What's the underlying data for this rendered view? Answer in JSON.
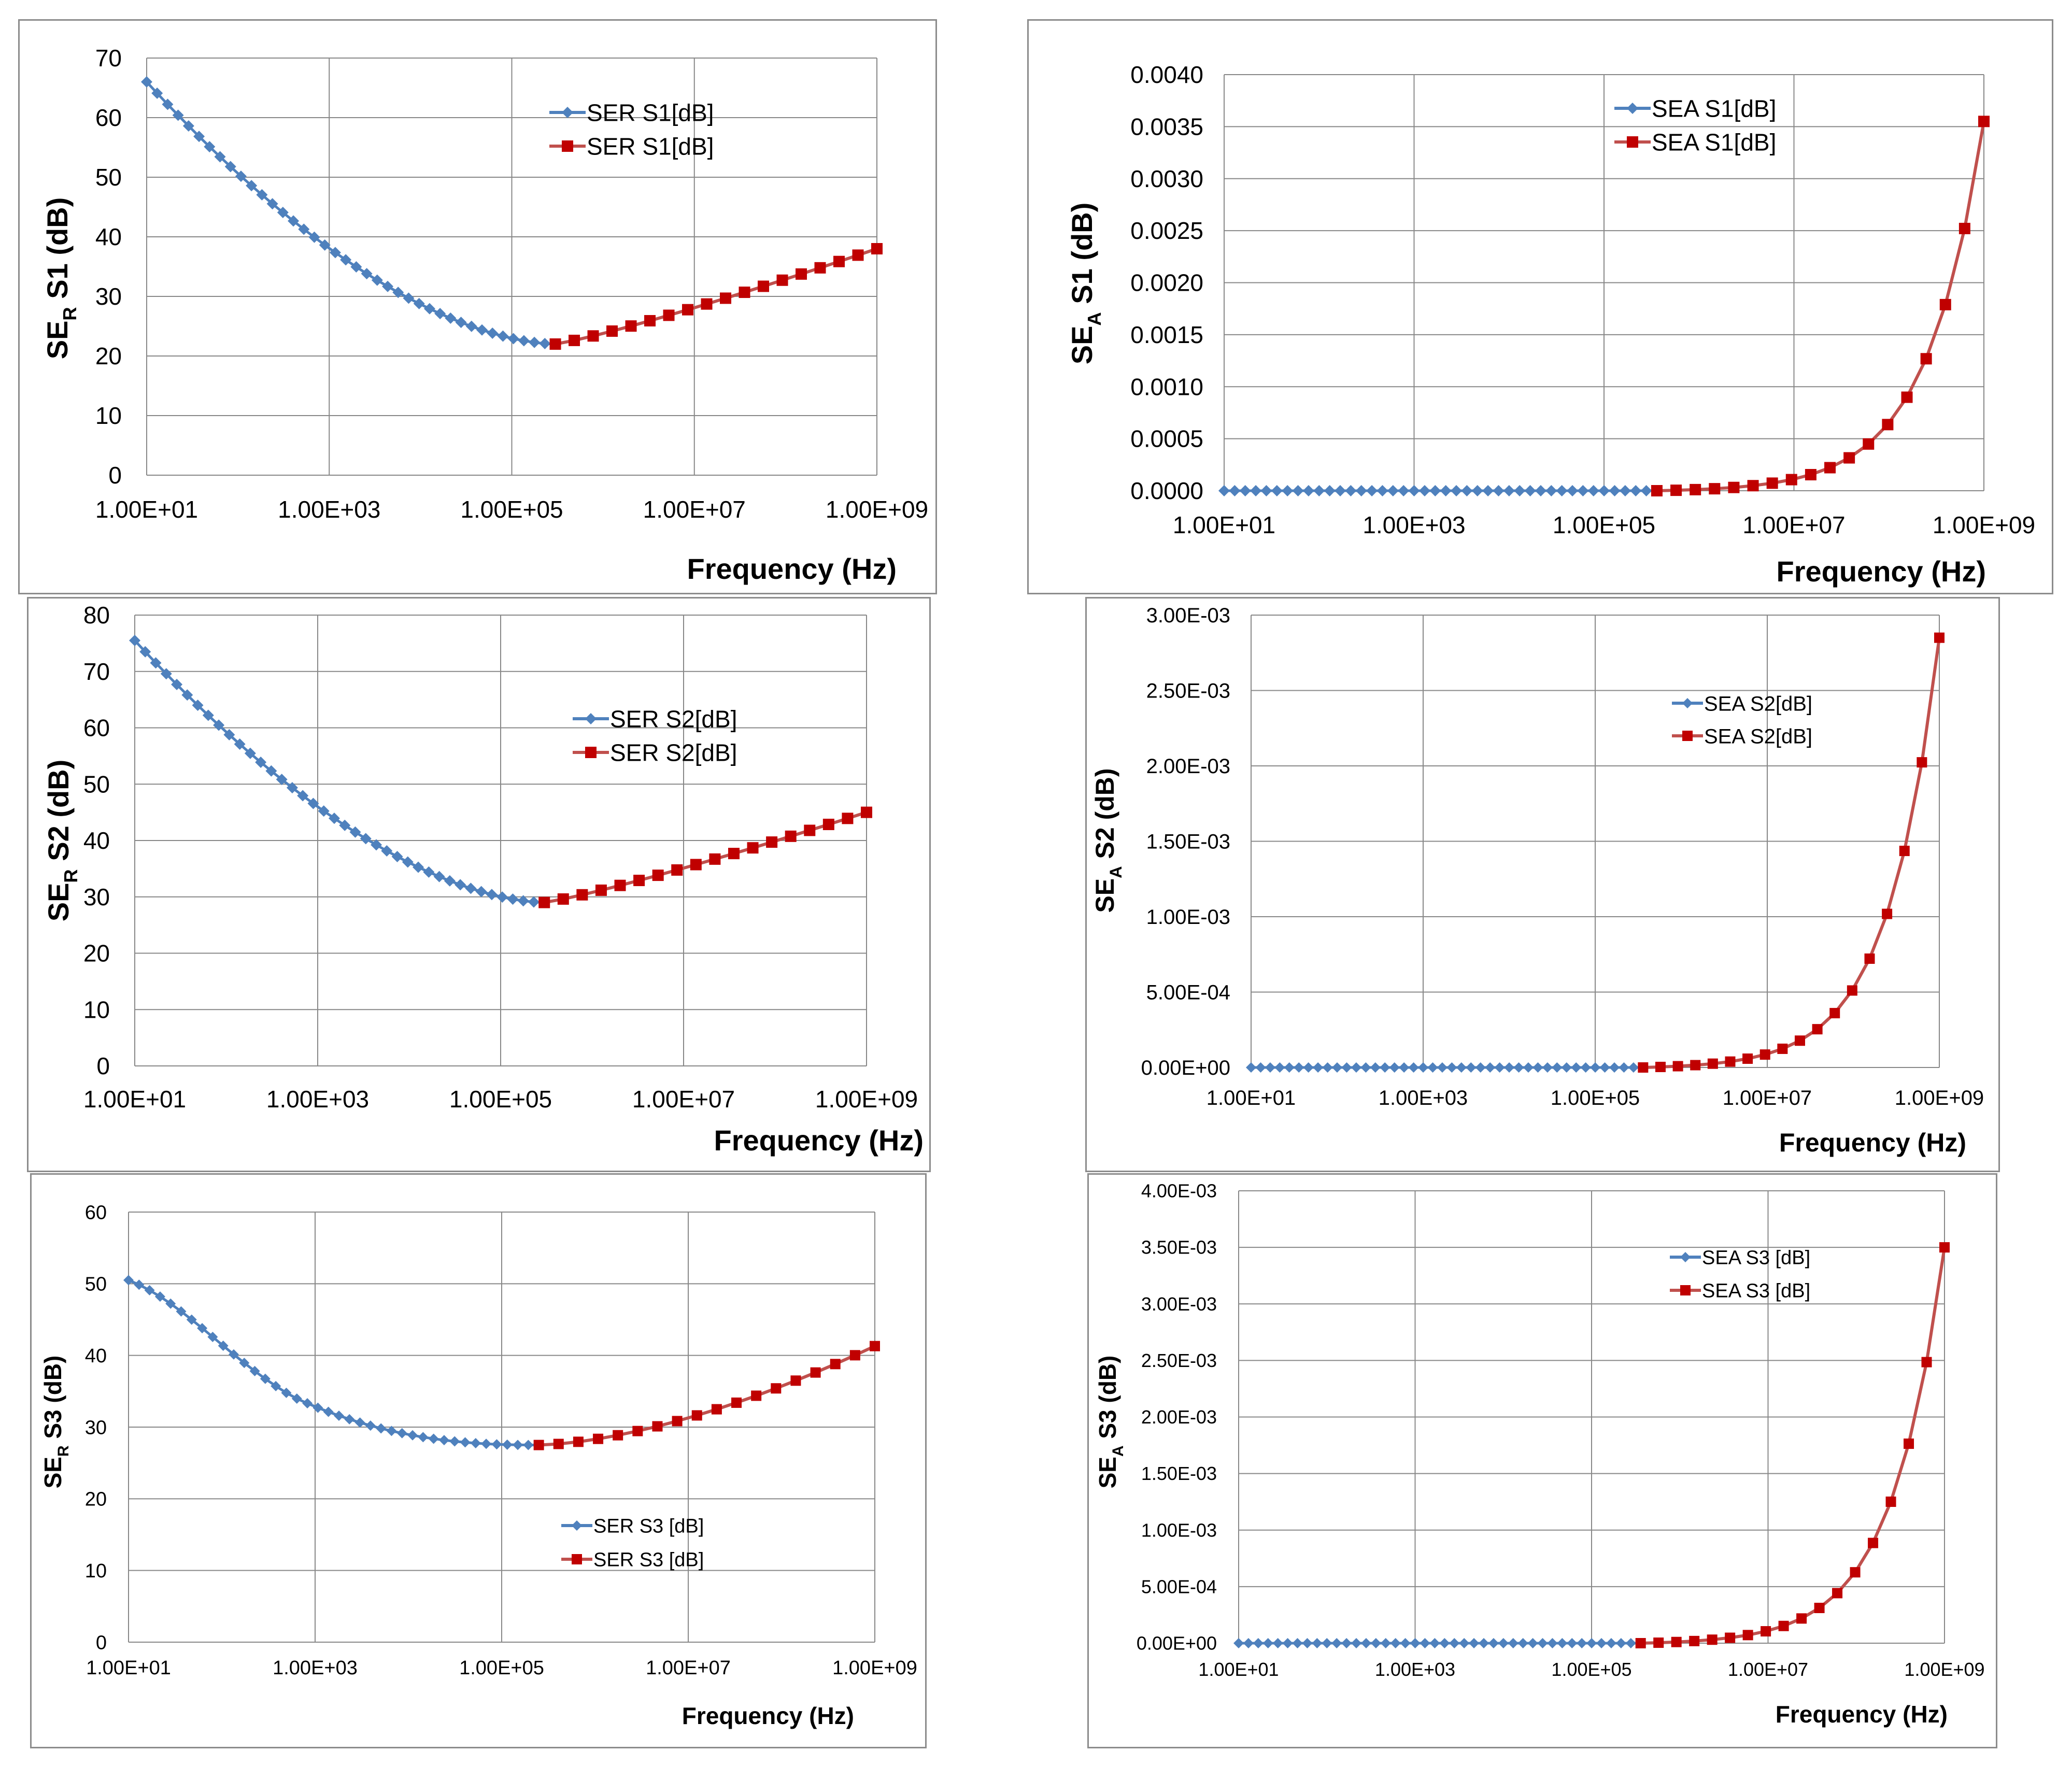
{
  "colors": {
    "blue_series": "#4f81bd",
    "red_series": "#c00000",
    "red_line": "#c0504d",
    "grid": "#888888"
  },
  "chart_data": [
    {
      "type": "line",
      "panel": "top-left",
      "title": "",
      "xlabel": "Frequency (Hz)",
      "ylabel": {
        "base": "SE",
        "sub": "R",
        "rest": " S1 (dB)"
      },
      "x_scale": "log10",
      "xlim": [
        10,
        1000000000
      ],
      "x_ticks": [
        10,
        1000,
        100000,
        10000000,
        1000000000
      ],
      "x_tick_labels": [
        "1.00E+01",
        "1.00E+03",
        "1.00E+05",
        "1.00E+07",
        "1.00E+09"
      ],
      "ylim": [
        0,
        70
      ],
      "y_ticks": [
        0,
        10,
        20,
        30,
        40,
        50,
        60,
        70
      ],
      "y_tick_labels": [
        "0",
        "10",
        "20",
        "30",
        "40",
        "50",
        "60",
        "70"
      ],
      "legend_position": "top-right",
      "series": [
        {
          "name": "SER S1[dB]",
          "color": "#4f81bd",
          "marker": "diamond",
          "curve": "ser-blue",
          "y_start": 66,
          "y_end": 22
        },
        {
          "name": "SER S1[dB]",
          "color": "#c00000",
          "marker": "square",
          "curve": "ser-red",
          "y_start": 22,
          "y_end": 38
        }
      ]
    },
    {
      "type": "line",
      "panel": "top-right",
      "title": "",
      "xlabel": "Frequency (Hz)",
      "ylabel": {
        "base": "SE",
        "sub": "A",
        "rest": " S1 (dB)"
      },
      "x_scale": "log10",
      "xlim": [
        10,
        1000000000
      ],
      "x_ticks": [
        10,
        1000,
        100000,
        10000000,
        1000000000
      ],
      "x_tick_labels": [
        "1.00E+01",
        "1.00E+03",
        "1.00E+05",
        "1.00E+07",
        "1.00E+09"
      ],
      "ylim": [
        0,
        0.004
      ],
      "y_ticks": [
        0,
        0.0005,
        0.001,
        0.0015,
        0.002,
        0.0025,
        0.003,
        0.0035,
        0.004
      ],
      "y_tick_labels": [
        "0.0000",
        "0.0005",
        "0.0010",
        "0.0015",
        "0.0020",
        "0.0025",
        "0.0030",
        "0.0035",
        "0.0040"
      ],
      "legend_position": "top-center",
      "series": [
        {
          "name": "SEA S1[dB]",
          "color": "#4f81bd",
          "marker": "diamond",
          "curve": "sea-blue",
          "y_max": 0.0
        },
        {
          "name": "SEA S1[dB]",
          "color": "#c00000",
          "marker": "square",
          "curve": "sea-red",
          "y_max": 0.00355
        }
      ]
    },
    {
      "type": "line",
      "panel": "middle-left",
      "title": "",
      "xlabel": "Frequency (Hz)",
      "ylabel": {
        "base": "SE",
        "sub": "R",
        "rest": " S2 (dB)"
      },
      "x_scale": "log10",
      "xlim": [
        10,
        1000000000
      ],
      "x_ticks": [
        10,
        1000,
        100000,
        10000000,
        1000000000
      ],
      "x_tick_labels": [
        "1.00E+01",
        "1.00E+03",
        "1.00E+05",
        "1.00E+07",
        "1.00E+09"
      ],
      "ylim": [
        0,
        80
      ],
      "y_ticks": [
        0,
        10,
        20,
        30,
        40,
        50,
        60,
        70,
        80
      ],
      "y_tick_labels": [
        "0",
        "10",
        "20",
        "30",
        "40",
        "50",
        "60",
        "70",
        "80"
      ],
      "legend_position": "top-right",
      "series": [
        {
          "name": "SER S2[dB]",
          "color": "#4f81bd",
          "marker": "diamond",
          "curve": "ser-blue",
          "y_start": 75.5,
          "y_end": 29
        },
        {
          "name": "SER S2[dB]",
          "color": "#c00000",
          "marker": "square",
          "curve": "ser-red",
          "y_start": 29,
          "y_end": 45
        }
      ]
    },
    {
      "type": "line",
      "panel": "middle-right",
      "title": "",
      "xlabel": "Frequency (Hz)",
      "ylabel": {
        "base": "SE",
        "sub": "A",
        "rest": " S2 (dB)"
      },
      "x_scale": "log10",
      "xlim": [
        10,
        1000000000
      ],
      "x_ticks": [
        10,
        1000,
        100000,
        10000000,
        1000000000
      ],
      "x_tick_labels": [
        "1.00E+01",
        "1.00E+03",
        "1.00E+05",
        "1.00E+07",
        "1.00E+09"
      ],
      "ylim": [
        0,
        0.003
      ],
      "y_ticks": [
        0,
        0.0005,
        0.001,
        0.0015,
        0.002,
        0.0025,
        0.003
      ],
      "y_tick_labels": [
        "0.00E+00",
        "5.00E-04",
        "1.00E-03",
        "1.50E-03",
        "2.00E-03",
        "2.50E-03",
        "3.00E-03"
      ],
      "legend_position": "top-right",
      "series": [
        {
          "name": "SEA S2[dB]",
          "color": "#4f81bd",
          "marker": "diamond",
          "curve": "sea-blue",
          "y_max": 0.0
        },
        {
          "name": "SEA S2[dB]",
          "color": "#c00000",
          "marker": "square",
          "curve": "sea-red",
          "y_max": 0.00285
        }
      ]
    },
    {
      "type": "line",
      "panel": "bottom-left",
      "title": "",
      "xlabel": "Frequency (Hz)",
      "ylabel": {
        "base": "SE",
        "sub": "R",
        "rest": " S3 (dB)"
      },
      "x_scale": "log10",
      "xlim": [
        10,
        1000000000
      ],
      "x_ticks": [
        10,
        1000,
        100000,
        10000000,
        1000000000
      ],
      "x_tick_labels": [
        "1.00E+01",
        "1.00E+03",
        "1.00E+05",
        "1.00E+07",
        "1.00E+09"
      ],
      "ylim": [
        0,
        60
      ],
      "y_ticks": [
        0,
        10,
        20,
        30,
        40,
        50,
        60
      ],
      "y_tick_labels": [
        "0",
        "10",
        "20",
        "30",
        "40",
        "50",
        "60"
      ],
      "legend_position": "bottom-right",
      "series": [
        {
          "name": "SER S3 [dB]",
          "color": "#4f81bd",
          "marker": "diamond",
          "curve": "ser3-blue",
          "y_start": 50.5,
          "y_end": 27.5
        },
        {
          "name": "SER S3 [dB]",
          "color": "#c00000",
          "marker": "square",
          "curve": "ser3-red",
          "y_start": 27.5,
          "y_end": 41.3
        }
      ]
    },
    {
      "type": "line",
      "panel": "bottom-right",
      "title": "",
      "xlabel": "Frequency (Hz)",
      "ylabel": {
        "base": "SE",
        "sub": "A",
        "rest": " S3 (dB)"
      },
      "x_scale": "log10",
      "xlim": [
        10,
        1000000000
      ],
      "x_ticks": [
        10,
        1000,
        100000,
        10000000,
        1000000000
      ],
      "x_tick_labels": [
        "1.00E+01",
        "1.00E+03",
        "1.00E+05",
        "1.00E+07",
        "1.00E+09"
      ],
      "ylim": [
        0,
        0.004
      ],
      "y_ticks": [
        0,
        0.0005,
        0.001,
        0.0015,
        0.002,
        0.0025,
        0.003,
        0.0035,
        0.004
      ],
      "y_tick_labels": [
        "0.00E+00",
        "5.00E-04",
        "1.00E-03",
        "1.50E-03",
        "2.00E-03",
        "2.50E-03",
        "3.00E-03",
        "3.50E-03",
        "4.00E-03"
      ],
      "legend_position": "top-right",
      "series": [
        {
          "name": "SEA S3 [dB]",
          "color": "#4f81bd",
          "marker": "diamond",
          "curve": "sea-blue",
          "y_max": 0.0
        },
        {
          "name": "SEA S3 [dB]",
          "color": "#c00000",
          "marker": "square",
          "curve": "sea-red",
          "y_max": 0.0035
        }
      ]
    }
  ]
}
